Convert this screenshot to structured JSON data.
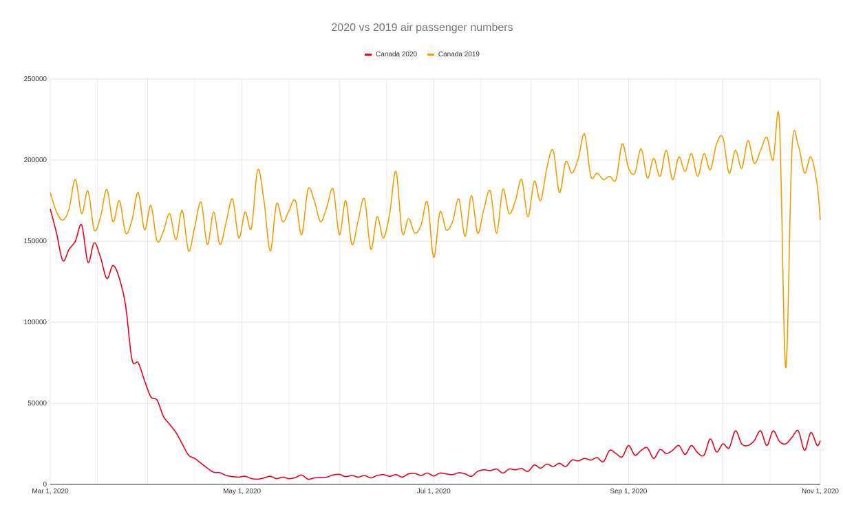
{
  "chart_data": {
    "type": "line",
    "title": "2020 vs 2019 air passenger numbers",
    "xlabel": "",
    "ylabel": "",
    "x_range": [
      "2020-03-01",
      "2020-11-01"
    ],
    "ylim": [
      0,
      250000
    ],
    "y_ticks": [
      {
        "value": 0,
        "label": "0"
      },
      {
        "value": 50000,
        "label": "50000"
      },
      {
        "value": 100000,
        "label": "100000"
      },
      {
        "value": 150000,
        "label": "150000"
      },
      {
        "value": 200000,
        "label": "200000"
      },
      {
        "value": 250000,
        "label": "250000"
      }
    ],
    "x_ticks": [
      {
        "date": "2020-03-01",
        "label": "Mar 1, 2020"
      },
      {
        "date": "2020-05-01",
        "label": "May 1, 2020"
      },
      {
        "date": "2020-07-01",
        "label": "Jul 1, 2020"
      },
      {
        "date": "2020-09-01",
        "label": "Sep 1, 2020"
      },
      {
        "date": "2020-11-01",
        "label": "Nov 1, 2020"
      }
    ],
    "grid": true,
    "legend_position": "top-center",
    "series": [
      {
        "name": "Canada 2020",
        "color": "#e8001c",
        "points": [
          [
            "2020-03-01",
            170000
          ],
          [
            "2020-03-03",
            155000
          ],
          [
            "2020-03-05",
            138000
          ],
          [
            "2020-03-07",
            145000
          ],
          [
            "2020-03-09",
            150000
          ],
          [
            "2020-03-11",
            160000
          ],
          [
            "2020-03-13",
            137000
          ],
          [
            "2020-03-15",
            149000
          ],
          [
            "2020-03-17",
            140000
          ],
          [
            "2020-03-19",
            127000
          ],
          [
            "2020-03-21",
            135000
          ],
          [
            "2020-03-23",
            127000
          ],
          [
            "2020-03-25",
            110000
          ],
          [
            "2020-03-27",
            77000
          ],
          [
            "2020-03-29",
            75000
          ],
          [
            "2020-03-31",
            64000
          ],
          [
            "2020-04-02",
            54000
          ],
          [
            "2020-04-04",
            52000
          ],
          [
            "2020-04-06",
            42000
          ],
          [
            "2020-04-08",
            37000
          ],
          [
            "2020-04-10",
            32000
          ],
          [
            "2020-04-12",
            25000
          ],
          [
            "2020-04-14",
            18000
          ],
          [
            "2020-04-16",
            16000
          ],
          [
            "2020-04-18",
            13000
          ],
          [
            "2020-04-20",
            10000
          ],
          [
            "2020-04-22",
            7500
          ],
          [
            "2020-04-24",
            7200
          ],
          [
            "2020-04-26",
            5500
          ],
          [
            "2020-04-28",
            4800
          ],
          [
            "2020-04-30",
            4500
          ],
          [
            "2020-05-02",
            5000
          ],
          [
            "2020-05-04",
            3600
          ],
          [
            "2020-05-06",
            3200
          ],
          [
            "2020-05-08",
            4000
          ],
          [
            "2020-05-10",
            5000
          ],
          [
            "2020-05-12",
            3500
          ],
          [
            "2020-05-14",
            4500
          ],
          [
            "2020-05-16",
            3500
          ],
          [
            "2020-05-18",
            4200
          ],
          [
            "2020-05-20",
            5800
          ],
          [
            "2020-05-22",
            3200
          ],
          [
            "2020-05-24",
            4000
          ],
          [
            "2020-05-26",
            4200
          ],
          [
            "2020-05-28",
            4500
          ],
          [
            "2020-05-30",
            5800
          ],
          [
            "2020-06-01",
            6200
          ],
          [
            "2020-06-03",
            4800
          ],
          [
            "2020-06-05",
            5500
          ],
          [
            "2020-06-07",
            4500
          ],
          [
            "2020-06-09",
            5500
          ],
          [
            "2020-06-11",
            4000
          ],
          [
            "2020-06-13",
            5500
          ],
          [
            "2020-06-15",
            6000
          ],
          [
            "2020-06-17",
            5000
          ],
          [
            "2020-06-19",
            6000
          ],
          [
            "2020-06-21",
            4500
          ],
          [
            "2020-06-23",
            6500
          ],
          [
            "2020-06-25",
            6800
          ],
          [
            "2020-06-27",
            5500
          ],
          [
            "2020-06-29",
            7000
          ],
          [
            "2020-07-01",
            5200
          ],
          [
            "2020-07-03",
            7000
          ],
          [
            "2020-07-05",
            6500
          ],
          [
            "2020-07-07",
            6000
          ],
          [
            "2020-07-09",
            7200
          ],
          [
            "2020-07-11",
            6500
          ],
          [
            "2020-07-13",
            5000
          ],
          [
            "2020-07-15",
            8000
          ],
          [
            "2020-07-17",
            9000
          ],
          [
            "2020-07-19",
            8500
          ],
          [
            "2020-07-21",
            9500
          ],
          [
            "2020-07-23",
            7000
          ],
          [
            "2020-07-25",
            9500
          ],
          [
            "2020-07-27",
            9000
          ],
          [
            "2020-07-29",
            9800
          ],
          [
            "2020-07-31",
            8000
          ],
          [
            "2020-08-02",
            12000
          ],
          [
            "2020-08-04",
            10000
          ],
          [
            "2020-08-06",
            12500
          ],
          [
            "2020-08-08",
            11000
          ],
          [
            "2020-08-10",
            13000
          ],
          [
            "2020-08-12",
            11000
          ],
          [
            "2020-08-14",
            15000
          ],
          [
            "2020-08-16",
            14500
          ],
          [
            "2020-08-18",
            16000
          ],
          [
            "2020-08-20",
            15000
          ],
          [
            "2020-08-22",
            16500
          ],
          [
            "2020-08-24",
            14000
          ],
          [
            "2020-08-26",
            21000
          ],
          [
            "2020-08-28",
            19000
          ],
          [
            "2020-08-30",
            17000
          ],
          [
            "2020-09-01",
            24000
          ],
          [
            "2020-09-03",
            18000
          ],
          [
            "2020-09-05",
            21000
          ],
          [
            "2020-09-07",
            22500
          ],
          [
            "2020-09-09",
            16000
          ],
          [
            "2020-09-11",
            21500
          ],
          [
            "2020-09-13",
            19000
          ],
          [
            "2020-09-15",
            21000
          ],
          [
            "2020-09-17",
            24000
          ],
          [
            "2020-09-19",
            18500
          ],
          [
            "2020-09-21",
            24000
          ],
          [
            "2020-09-23",
            19500
          ],
          [
            "2020-09-25",
            18000
          ],
          [
            "2020-09-27",
            28000
          ],
          [
            "2020-09-29",
            20000
          ],
          [
            "2020-10-01",
            25000
          ],
          [
            "2020-10-03",
            22500
          ],
          [
            "2020-10-05",
            33000
          ],
          [
            "2020-10-07",
            25000
          ],
          [
            "2020-10-09",
            24000
          ],
          [
            "2020-10-11",
            27000
          ],
          [
            "2020-10-13",
            33000
          ],
          [
            "2020-10-15",
            24000
          ],
          [
            "2020-10-17",
            33000
          ],
          [
            "2020-10-19",
            26500
          ],
          [
            "2020-10-21",
            25000
          ],
          [
            "2020-10-23",
            29000
          ],
          [
            "2020-10-25",
            33000
          ],
          [
            "2020-10-27",
            21000
          ],
          [
            "2020-10-29",
            32000
          ],
          [
            "2020-10-31",
            24000
          ],
          [
            "2020-11-01",
            27000
          ]
        ]
      },
      {
        "name": "Canada 2019",
        "color": "#f39c00",
        "points": [
          [
            "2020-03-01",
            180000
          ],
          [
            "2020-03-03",
            168000
          ],
          [
            "2020-03-05",
            163000
          ],
          [
            "2020-03-07",
            170000
          ],
          [
            "2020-03-09",
            188000
          ],
          [
            "2020-03-11",
            167000
          ],
          [
            "2020-03-13",
            181000
          ],
          [
            "2020-03-15",
            157000
          ],
          [
            "2020-03-17",
            165000
          ],
          [
            "2020-03-19",
            182000
          ],
          [
            "2020-03-21",
            162000
          ],
          [
            "2020-03-23",
            175000
          ],
          [
            "2020-03-25",
            155000
          ],
          [
            "2020-03-27",
            163000
          ],
          [
            "2020-03-29",
            180000
          ],
          [
            "2020-03-31",
            157000
          ],
          [
            "2020-04-02",
            172000
          ],
          [
            "2020-04-04",
            150000
          ],
          [
            "2020-04-06",
            156000
          ],
          [
            "2020-04-08",
            167000
          ],
          [
            "2020-04-10",
            151000
          ],
          [
            "2020-04-12",
            169000
          ],
          [
            "2020-04-14",
            144000
          ],
          [
            "2020-04-16",
            159000
          ],
          [
            "2020-04-18",
            174000
          ],
          [
            "2020-04-20",
            148000
          ],
          [
            "2020-04-22",
            168000
          ],
          [
            "2020-04-24",
            148000
          ],
          [
            "2020-04-26",
            162000
          ],
          [
            "2020-04-28",
            176000
          ],
          [
            "2020-04-30",
            152000
          ],
          [
            "2020-05-02",
            168000
          ],
          [
            "2020-05-04",
            158000
          ],
          [
            "2020-05-06",
            194000
          ],
          [
            "2020-05-08",
            175000
          ],
          [
            "2020-05-10",
            144000
          ],
          [
            "2020-05-12",
            173000
          ],
          [
            "2020-05-14",
            162000
          ],
          [
            "2020-05-16",
            169000
          ],
          [
            "2020-05-18",
            175000
          ],
          [
            "2020-05-20",
            154000
          ],
          [
            "2020-05-22",
            182000
          ],
          [
            "2020-05-24",
            175000
          ],
          [
            "2020-05-26",
            162000
          ],
          [
            "2020-05-28",
            171000
          ],
          [
            "2020-05-30",
            182000
          ],
          [
            "2020-06-01",
            154000
          ],
          [
            "2020-06-03",
            175000
          ],
          [
            "2020-06-05",
            148000
          ],
          [
            "2020-06-07",
            163000
          ],
          [
            "2020-06-09",
            176000
          ],
          [
            "2020-06-11",
            145000
          ],
          [
            "2020-06-13",
            165000
          ],
          [
            "2020-06-15",
            152000
          ],
          [
            "2020-06-17",
            167000
          ],
          [
            "2020-06-19",
            193000
          ],
          [
            "2020-06-21",
            155000
          ],
          [
            "2020-06-23",
            164000
          ],
          [
            "2020-06-25",
            155000
          ],
          [
            "2020-06-27",
            160000
          ],
          [
            "2020-06-29",
            174000
          ],
          [
            "2020-07-01",
            140000
          ],
          [
            "2020-07-03",
            168000
          ],
          [
            "2020-07-05",
            157000
          ],
          [
            "2020-07-07",
            162000
          ],
          [
            "2020-07-09",
            176000
          ],
          [
            "2020-07-11",
            153000
          ],
          [
            "2020-07-13",
            178000
          ],
          [
            "2020-07-15",
            155000
          ],
          [
            "2020-07-17",
            170000
          ],
          [
            "2020-07-19",
            181000
          ],
          [
            "2020-07-21",
            155000
          ],
          [
            "2020-07-23",
            182000
          ],
          [
            "2020-07-25",
            167000
          ],
          [
            "2020-07-27",
            175000
          ],
          [
            "2020-07-29",
            188000
          ],
          [
            "2020-07-31",
            165000
          ],
          [
            "2020-08-02",
            187000
          ],
          [
            "2020-08-04",
            175000
          ],
          [
            "2020-08-06",
            195000
          ],
          [
            "2020-08-08",
            206000
          ],
          [
            "2020-08-10",
            180000
          ],
          [
            "2020-08-12",
            199000
          ],
          [
            "2020-08-14",
            192000
          ],
          [
            "2020-08-16",
            201000
          ],
          [
            "2020-08-18",
            216000
          ],
          [
            "2020-08-20",
            190000
          ],
          [
            "2020-08-22",
            192000
          ],
          [
            "2020-08-24",
            188000
          ],
          [
            "2020-08-26",
            190000
          ],
          [
            "2020-08-28",
            188000
          ],
          [
            "2020-08-30",
            210000
          ],
          [
            "2020-09-01",
            195000
          ],
          [
            "2020-09-03",
            192000
          ],
          [
            "2020-09-05",
            207000
          ],
          [
            "2020-09-07",
            189000
          ],
          [
            "2020-09-09",
            201000
          ],
          [
            "2020-09-11",
            190000
          ],
          [
            "2020-09-13",
            206000
          ],
          [
            "2020-09-15",
            188000
          ],
          [
            "2020-09-17",
            202000
          ],
          [
            "2020-09-19",
            193000
          ],
          [
            "2020-09-21",
            204000
          ],
          [
            "2020-09-23",
            190000
          ],
          [
            "2020-09-25",
            204000
          ],
          [
            "2020-09-27",
            194000
          ],
          [
            "2020-09-29",
            210000
          ],
          [
            "2020-10-01",
            214000
          ],
          [
            "2020-10-03",
            192000
          ],
          [
            "2020-10-05",
            206000
          ],
          [
            "2020-10-07",
            195000
          ],
          [
            "2020-10-09",
            212000
          ],
          [
            "2020-10-11",
            198000
          ],
          [
            "2020-10-13",
            206000
          ],
          [
            "2020-10-15",
            214000
          ],
          [
            "2020-10-17",
            200000
          ],
          [
            "2020-10-19",
            224000
          ],
          [
            "2020-10-21",
            72000
          ],
          [
            "2020-10-23",
            207000
          ],
          [
            "2020-10-25",
            209000
          ],
          [
            "2020-10-27",
            192000
          ],
          [
            "2020-10-29",
            202000
          ],
          [
            "2020-10-31",
            185000
          ],
          [
            "2020-11-01",
            163000
          ]
        ]
      }
    ]
  }
}
